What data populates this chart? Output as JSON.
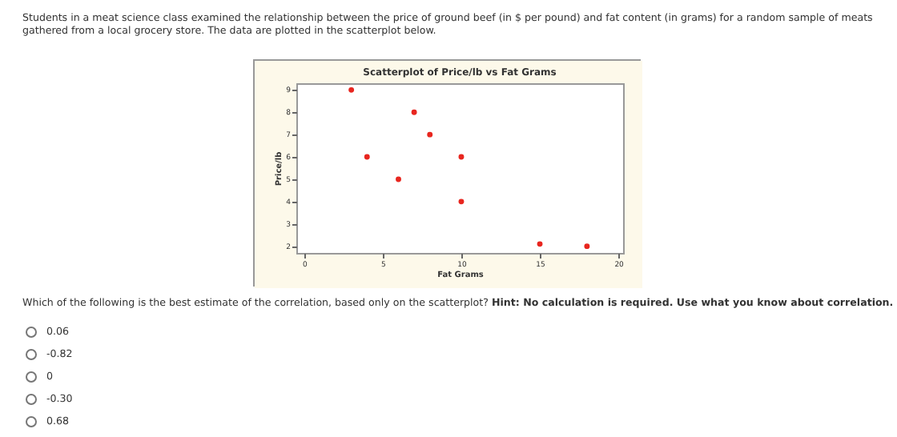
{
  "chart_data": {
    "type": "scatter",
    "title": "Scatterplot of Price/lb vs Fat Grams",
    "xlabel": "Fat Grams",
    "ylabel": "Price/lb",
    "x": [
      3,
      4,
      6,
      7,
      8,
      10,
      10,
      15,
      18
    ],
    "series": [
      {
        "color": "#e8261f",
        "values": [
          9,
          6,
          5,
          8,
          7,
          6,
          4,
          2.1,
          2
        ]
      }
    ],
    "xlim": [
      -0.5,
      20.3
    ],
    "xticks": [
      0,
      5,
      10,
      15,
      20
    ],
    "ylim": [
      1.7,
      9.3
    ],
    "yticks": [
      2,
      3,
      4,
      5,
      6,
      7,
      8,
      9
    ],
    "grid": false,
    "marker": "circle",
    "annotations": [
      "Students in a meat science class examined the relationship between the price of ground beef (in $ per pound) and fat content (in grams) for a random sample of meats gathered from a local grocery store. The data are plotted in the scatterplot below.",
      "Which of the following is the best estimate of the correlation, based only on the scatterplot?",
      "Hint: No calculation is required. Use what you know about correlation.",
      "0.06",
      "-0.82",
      "0",
      "-0.30",
      "0.68"
    ]
  }
}
